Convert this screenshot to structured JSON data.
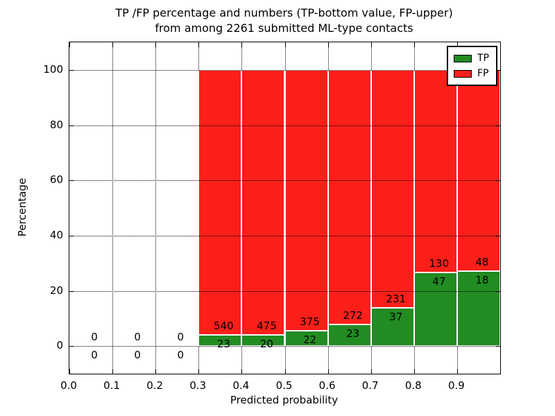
{
  "window": {
    "kind": "matplotlib-figure",
    "background_color": "#ffffff"
  },
  "title": {
    "line1": "TP /FP percentage and numbers (TP-bottom value, FP-upper)",
    "line2": "from among 2261 submitted ML-type contacts"
  },
  "legend": {
    "position": "upper right",
    "items": [
      {
        "label": "TP",
        "color": "#228b22"
      },
      {
        "label": "FP",
        "color": "#fb1f1a"
      }
    ]
  },
  "colors": {
    "tp_green": "#228b22",
    "fp_red": "#fb1f1a",
    "grid": "#000000",
    "text": "#000000",
    "bar_edge": "#ffffff"
  },
  "chart_data": {
    "type": "bar",
    "stacked": true,
    "normalized_to_percent": true,
    "title": "TP /FP percentage and numbers (TP-bottom value, FP-upper) from among 2261 submitted ML-type contacts",
    "xlabel": "Predicted probability",
    "ylabel": "Percentage",
    "xlim": [
      0.0,
      1.0
    ],
    "ylim": [
      -10,
      110
    ],
    "xticks": [
      "0.0",
      "0.1",
      "0.2",
      "0.3",
      "0.4",
      "0.5",
      "0.6",
      "0.7",
      "0.8",
      "0.9"
    ],
    "yticks": [
      "0",
      "20",
      "40",
      "60",
      "80",
      "100"
    ],
    "grid": "dotted",
    "legend_position": "upper right",
    "bin_width": 0.1,
    "total_contacts": 2261,
    "series": [
      {
        "name": "TP",
        "color": "#228b22",
        "counts": [
          0,
          0,
          0,
          23,
          20,
          22,
          23,
          37,
          47,
          18
        ]
      },
      {
        "name": "FP",
        "color": "#fb1f1a",
        "counts": [
          0,
          0,
          0,
          540,
          475,
          375,
          272,
          231,
          130,
          48
        ]
      }
    ],
    "bins": [
      {
        "x_start": 0.0,
        "x_end": 0.1,
        "tp_count": 0,
        "fp_count": 0,
        "tp_pct": 0,
        "fp_pct": 0
      },
      {
        "x_start": 0.1,
        "x_end": 0.2,
        "tp_count": 0,
        "fp_count": 0,
        "tp_pct": 0,
        "fp_pct": 0
      },
      {
        "x_start": 0.2,
        "x_end": 0.3,
        "tp_count": 0,
        "fp_count": 0,
        "tp_pct": 0,
        "fp_pct": 0
      },
      {
        "x_start": 0.3,
        "x_end": 0.4,
        "tp_count": 23,
        "fp_count": 540,
        "tp_pct": 4.09,
        "fp_pct": 95.91
      },
      {
        "x_start": 0.4,
        "x_end": 0.5,
        "tp_count": 20,
        "fp_count": 475,
        "tp_pct": 4.04,
        "fp_pct": 95.96
      },
      {
        "x_start": 0.5,
        "x_end": 0.6,
        "tp_count": 22,
        "fp_count": 375,
        "tp_pct": 5.54,
        "fp_pct": 94.46
      },
      {
        "x_start": 0.6,
        "x_end": 0.7,
        "tp_count": 23,
        "fp_count": 272,
        "tp_pct": 7.8,
        "fp_pct": 92.2
      },
      {
        "x_start": 0.7,
        "x_end": 0.8,
        "tp_count": 37,
        "fp_count": 231,
        "tp_pct": 13.81,
        "fp_pct": 86.19
      },
      {
        "x_start": 0.8,
        "x_end": 0.9,
        "tp_count": 47,
        "fp_count": 130,
        "tp_pct": 26.55,
        "fp_pct": 73.45
      },
      {
        "x_start": 0.9,
        "x_end": 1.0,
        "tp_count": 18,
        "fp_count": 48,
        "tp_pct": 27.27,
        "fp_pct": 72.73
      }
    ]
  }
}
